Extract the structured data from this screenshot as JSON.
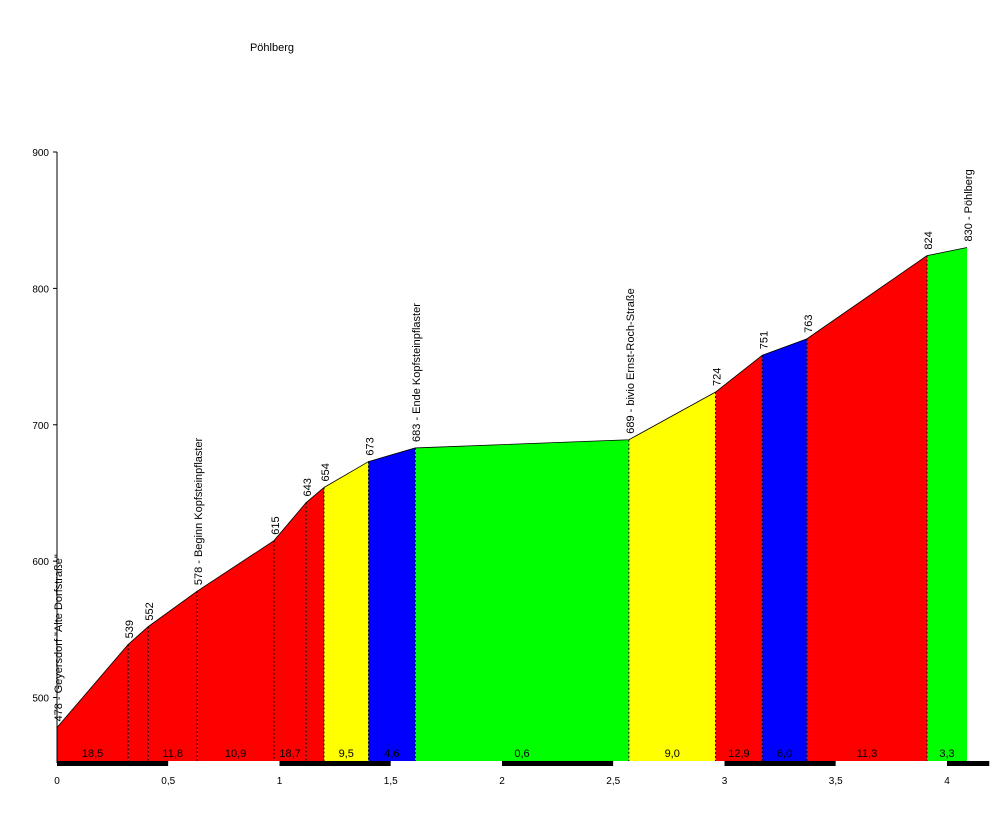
{
  "chart_data": {
    "type": "profile",
    "title": "Pöhlberg",
    "x": [
      0,
      0.32,
      0.41,
      0.63,
      0.975,
      1.12,
      1.2,
      1.4,
      1.61,
      2.57,
      2.96,
      3.17,
      3.37,
      3.91,
      4.09
    ],
    "values": [
      478,
      539,
      552,
      578,
      615,
      643,
      654,
      673,
      683,
      689,
      724,
      751,
      763,
      824,
      830
    ],
    "value_labels": [
      "478 - Geyersdorf \"Alte Dorfstraße\"",
      "539",
      "552",
      "578 - Beginn Kopfsteinpflaster",
      "615",
      "643",
      "654",
      "673",
      "683 - Ende Kopfsteinpflaster",
      "689 - bivio Ernst-Roch-Straße",
      "724",
      "751",
      "763",
      "824",
      "830 - Pöhlberg"
    ],
    "segment_colors": [
      "#ff0000",
      "#ff0000",
      "#ff0000",
      "#ff0000",
      "#ff0000",
      "#ff0000",
      "#ffff00",
      "#0000ff",
      "#00ff00",
      "#ffff00",
      "#ff0000",
      "#0000ff",
      "#ff0000",
      "#00ff00"
    ],
    "gradient_labels": [
      "18,5",
      null,
      "11,8",
      "10,9",
      "18,7",
      null,
      "9,5",
      "4,6",
      "0,6",
      "9,0",
      "12,9",
      "6,0",
      "11,3",
      "3,3"
    ],
    "xlim": [
      0,
      4.19
    ],
    "ylim": [
      452,
      900
    ],
    "xticks": [
      0,
      {
        "value": 0.5,
        "label": "0,5"
      },
      1,
      {
        "value": 1.5,
        "label": "1,5"
      },
      2,
      {
        "value": 2.5,
        "label": "2,5"
      },
      3,
      {
        "value": 3.5,
        "label": "3,5"
      },
      4
    ],
    "yticks": [
      500,
      600,
      700,
      800,
      900
    ]
  }
}
